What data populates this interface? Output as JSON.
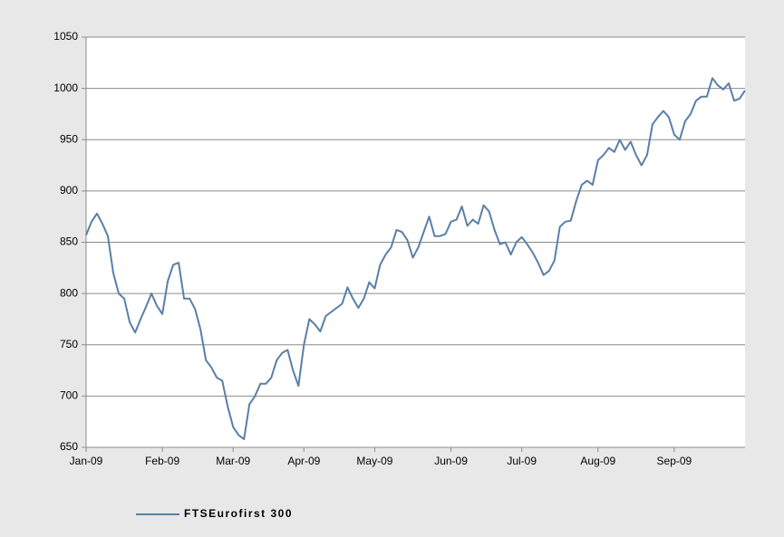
{
  "chart_data": {
    "type": "line",
    "categories": [
      "Jan-09",
      null,
      null,
      null,
      null,
      null,
      null,
      null,
      null,
      null,
      null,
      null,
      null,
      null,
      "Feb-09",
      null,
      null,
      null,
      null,
      null,
      null,
      null,
      null,
      null,
      null,
      null,
      null,
      "Mar-09",
      null,
      null,
      null,
      null,
      null,
      null,
      null,
      null,
      null,
      null,
      null,
      null,
      "Apr-09",
      null,
      null,
      null,
      null,
      null,
      null,
      null,
      null,
      null,
      null,
      null,
      null,
      "May-09",
      null,
      null,
      null,
      null,
      null,
      null,
      null,
      null,
      null,
      null,
      null,
      null,
      null,
      "Jun-09",
      null,
      null,
      null,
      null,
      null,
      null,
      null,
      null,
      null,
      null,
      null,
      null,
      "Jul-09",
      null,
      null,
      null,
      null,
      null,
      null,
      null,
      null,
      null,
      null,
      null,
      null,
      null,
      "Aug-09",
      null,
      null,
      null,
      null,
      null,
      null,
      null,
      null,
      null,
      null,
      null,
      null,
      null,
      "Sep-09",
      null,
      null,
      null,
      null,
      null,
      null,
      null,
      null,
      null,
      null,
      null,
      null,
      null
    ],
    "series": [
      {
        "name": "FTSEurofirst 300",
        "color": "#5a7fa6",
        "values": [
          857,
          870,
          878,
          868,
          856,
          820,
          800,
          795,
          772,
          762,
          775,
          787,
          800,
          788,
          780,
          812,
          828,
          830,
          795,
          795,
          785,
          765,
          735,
          728,
          718,
          715,
          690,
          670,
          662,
          658,
          692,
          700,
          712,
          712,
          718,
          735,
          742,
          745,
          725,
          710,
          750,
          775,
          770,
          763,
          778,
          782,
          786,
          790,
          806,
          795,
          786,
          795,
          811,
          805,
          828,
          838,
          845,
          862,
          860,
          852,
          835,
          845,
          860,
          875,
          856,
          856,
          858,
          870,
          872,
          885,
          866,
          872,
          868,
          886,
          880,
          862,
          848,
          850,
          838,
          850,
          855,
          848,
          840,
          830,
          818,
          822,
          832,
          865,
          870,
          871,
          890,
          906,
          910,
          906,
          930,
          935,
          942,
          938,
          950,
          940,
          948,
          935,
          925,
          935,
          965,
          972,
          978,
          972,
          955,
          950,
          968,
          975,
          988,
          992,
          992,
          1010,
          1003,
          999,
          1005,
          988,
          990,
          998
        ]
      }
    ],
    "ylim": [
      650,
      1050
    ],
    "yticks": [
      650,
      700,
      750,
      800,
      850,
      900,
      950,
      1000,
      1050
    ],
    "grid": true,
    "legend": "bottom"
  }
}
